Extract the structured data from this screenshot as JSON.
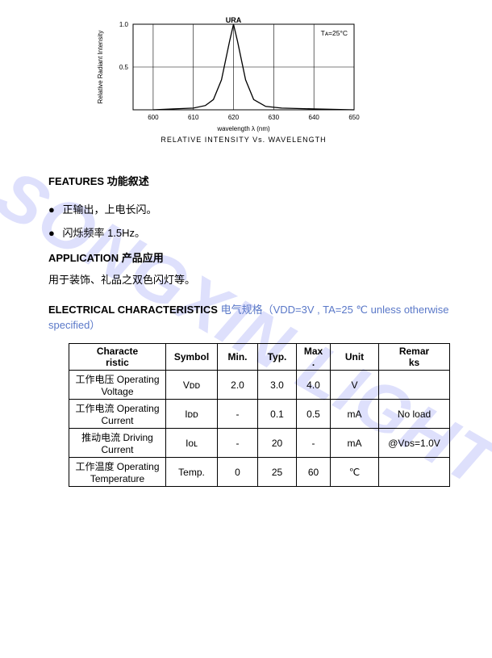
{
  "watermark": "SONGXIN LIGHT",
  "chart": {
    "type": "line",
    "title_top": "URA",
    "temp_label": "Tᴀ=25°C",
    "ylabel": "Relative Radiant Intensity",
    "xlabel": "wavelength λ (nm)",
    "caption": "RELATIVE INTENSITY Vs. WAVELENGTH",
    "xlim": [
      595,
      650
    ],
    "ylim": [
      0,
      1.0
    ],
    "xticks": [
      600,
      610,
      620,
      630,
      640,
      650
    ],
    "yticks": [
      0.5,
      1.0
    ],
    "peak_x": 620,
    "x_points": [
      600,
      605,
      610,
      613,
      615,
      617,
      619,
      620,
      621,
      623,
      625,
      628,
      632,
      640,
      650
    ],
    "y_points": [
      0.0,
      0.01,
      0.02,
      0.05,
      0.12,
      0.35,
      0.8,
      1.0,
      0.8,
      0.35,
      0.12,
      0.04,
      0.02,
      0.01,
      0.0
    ],
    "curve_color": "#000000",
    "grid_color": "#000000",
    "background_color": "#ffffff",
    "line_width": 1.3,
    "axis_fontsize": 8,
    "caption_fontsize": 9,
    "ylabel_fontsize": 8
  },
  "features": {
    "heading_en": "FEATURES",
    "heading_zh": "功能叙述",
    "items": [
      "正输出，上电长闪。",
      "闪烁频率 1.5Hz。"
    ]
  },
  "application": {
    "heading_en": "APPLICATION",
    "heading_zh": "产品应用",
    "text": "用于装饰、礼品之双色闪灯等。"
  },
  "electrical": {
    "heading_en": "ELECTRICAL CHARACTERISTICS",
    "heading_zh": "电气规格",
    "conditions": "（VDD=3V , TA=25 ℃ unless otherwise specified）",
    "columns": [
      "Characteristic",
      "Symbol",
      "Min.",
      "Typ.",
      "Max.",
      "Unit",
      "Remarks"
    ],
    "rows": [
      {
        "char": "工作电压 Operating Voltage",
        "symbol": "Vᴅᴅ",
        "min": "2.0",
        "typ": "3.0",
        "max": "4.0",
        "unit": "V",
        "remarks": ""
      },
      {
        "char": "工作电流 Operating Current",
        "symbol": "Iᴅᴅ",
        "min": "-",
        "typ": "0.1",
        "max": "0.5",
        "unit": "mA",
        "remarks": "No load"
      },
      {
        "char": "推动电流 Driving Current",
        "symbol": "Iᴏʟ",
        "min": "-",
        "typ": "20",
        "max": "-",
        "unit": "mA",
        "remarks": "@Vᴅs=1.0V"
      },
      {
        "char": "工作温度 Operating Temperature",
        "symbol": "Temp.",
        "min": "0",
        "typ": "25",
        "max": "60",
        "unit": "℃",
        "remarks": ""
      }
    ]
  }
}
